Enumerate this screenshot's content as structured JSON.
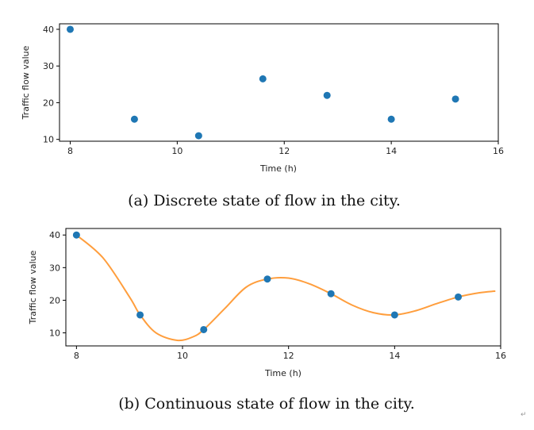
{
  "chart_data": [
    {
      "type": "scatter",
      "xlabel": "Time (h)",
      "ylabel": "Traffic flow value",
      "xlim": [
        7.8,
        16
      ],
      "ylim": [
        9.5,
        41.5
      ],
      "xticks": [
        8,
        10,
        12,
        14,
        16
      ],
      "yticks": [
        10,
        20,
        30,
        40
      ],
      "points": {
        "x": [
          8,
          9.2,
          10.4,
          11.6,
          12.8,
          14,
          15.2
        ],
        "y": [
          40,
          15.5,
          11,
          26.5,
          22,
          15.5,
          21
        ]
      },
      "caption": "(a) Discrete state of flow in the city.",
      "colors": {
        "points": "#1f77b4"
      },
      "grid": false
    },
    {
      "type": "line",
      "xlabel": "Time (h)",
      "ylabel": "Traffic flow value",
      "xlim": [
        7.8,
        16
      ],
      "ylim": [
        6,
        42
      ],
      "xticks": [
        8,
        10,
        12,
        14,
        16
      ],
      "yticks": [
        10,
        20,
        30,
        40
      ],
      "points": {
        "x": [
          8,
          9.2,
          10.4,
          11.6,
          12.8,
          14,
          15.2
        ],
        "y": [
          40,
          15.5,
          11,
          26.5,
          22,
          15.5,
          21
        ]
      },
      "curve": {
        "x": [
          8,
          8.5,
          9,
          9.2,
          9.5,
          9.9,
          10.2,
          10.4,
          10.8,
          11.2,
          11.6,
          12,
          12.4,
          12.8,
          13.2,
          13.6,
          14,
          14.4,
          14.8,
          15.2,
          15.6,
          15.9
        ],
        "y": [
          40,
          33,
          21,
          15.5,
          10,
          7.7,
          8.8,
          11,
          17.5,
          24,
          26.5,
          26.8,
          25,
          22,
          18.5,
          16.2,
          15.5,
          16.8,
          19,
          21,
          22.3,
          22.8
        ]
      },
      "caption": "(b) Continuous state of flow in the city.",
      "colors": {
        "points": "#1f77b4",
        "curve": "#ff9e3d"
      },
      "grid": false
    }
  ],
  "corner_mark": "↵"
}
